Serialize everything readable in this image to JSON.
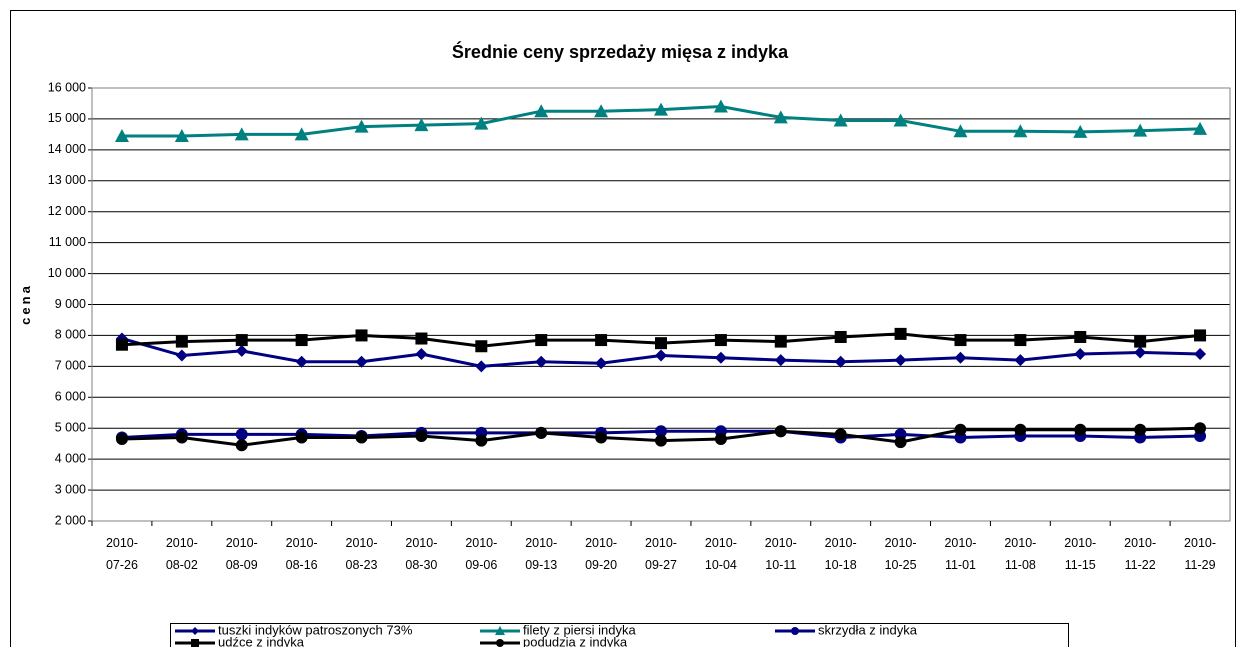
{
  "chart_data": {
    "type": "line",
    "title": "Średnie ceny sprzedaży mięsa z indyka",
    "y_label": "cena",
    "categories": [
      "2010-07-26",
      "2010-08-02",
      "2010-08-09",
      "2010-08-16",
      "2010-08-23",
      "2010-08-30",
      "2010-09-06",
      "2010-09-13",
      "2010-09-20",
      "2010-09-27",
      "2010-10-04",
      "2010-10-11",
      "2010-10-18",
      "2010-10-25",
      "2010-11-01",
      "2010-11-08",
      "2010-11-15",
      "2010-11-22",
      "2010-11-29"
    ],
    "series": [
      {
        "name": "tuszki indyków patroszonych 73%",
        "color": "#000080",
        "marker": "diamond",
        "values": [
          7900,
          7350,
          7500,
          7150,
          7150,
          7400,
          7000,
          7150,
          7100,
          7350,
          7280,
          7200,
          7150,
          7200,
          7280,
          7200,
          7400,
          7450,
          7400
        ]
      },
      {
        "name": "filety z piersi indyka",
        "color": "#008080",
        "marker": "triangle",
        "values": [
          14450,
          14450,
          14500,
          14500,
          14750,
          14800,
          14850,
          15250,
          15250,
          15300,
          15400,
          15050,
          14950,
          14950,
          14600,
          14600,
          14580,
          14620,
          14680
        ]
      },
      {
        "name": "skrzydła z indyka",
        "color": "#000080",
        "marker": "circle",
        "values": [
          4700,
          4800,
          4800,
          4800,
          4750,
          4850,
          4850,
          4850,
          4850,
          4900,
          4900,
          4900,
          4700,
          4800,
          4700,
          4750,
          4750,
          4700,
          4750
        ]
      },
      {
        "name": "udźce z indyka",
        "color": "#000000",
        "marker": "square",
        "values": [
          7700,
          7800,
          7850,
          7850,
          8000,
          7900,
          7650,
          7850,
          7850,
          7750,
          7850,
          7800,
          7950,
          8050,
          7850,
          7850,
          7950,
          7800,
          8000
        ]
      },
      {
        "name": "podudzia z indyka",
        "color": "#000000",
        "marker": "circle",
        "values": [
          4650,
          4700,
          4450,
          4700,
          4700,
          4750,
          4600,
          4850,
          4700,
          4600,
          4650,
          4900,
          4800,
          4550,
          4950,
          4950,
          4950,
          4950,
          5000
        ]
      }
    ],
    "ylim": [
      2000,
      16000
    ],
    "yticks": [
      {
        "value": 2000,
        "label": "2 000"
      },
      {
        "value": 3000,
        "label": "3 000"
      },
      {
        "value": 4000,
        "label": "4 000"
      },
      {
        "value": 5000,
        "label": "5 000"
      },
      {
        "value": 6000,
        "label": "6 000"
      },
      {
        "value": 7000,
        "label": "7 000"
      },
      {
        "value": 8000,
        "label": "8 000"
      },
      {
        "value": 9000,
        "label": "9 000"
      },
      {
        "value": 10000,
        "label": "10 000"
      },
      {
        "value": 11000,
        "label": "11 000"
      },
      {
        "value": 12000,
        "label": "12 000"
      },
      {
        "value": 13000,
        "label": "13 000"
      },
      {
        "value": 14000,
        "label": "14 000"
      },
      {
        "value": 15000,
        "label": "15 000"
      },
      {
        "value": 16000,
        "label": "16 000"
      }
    ],
    "grid": true
  }
}
